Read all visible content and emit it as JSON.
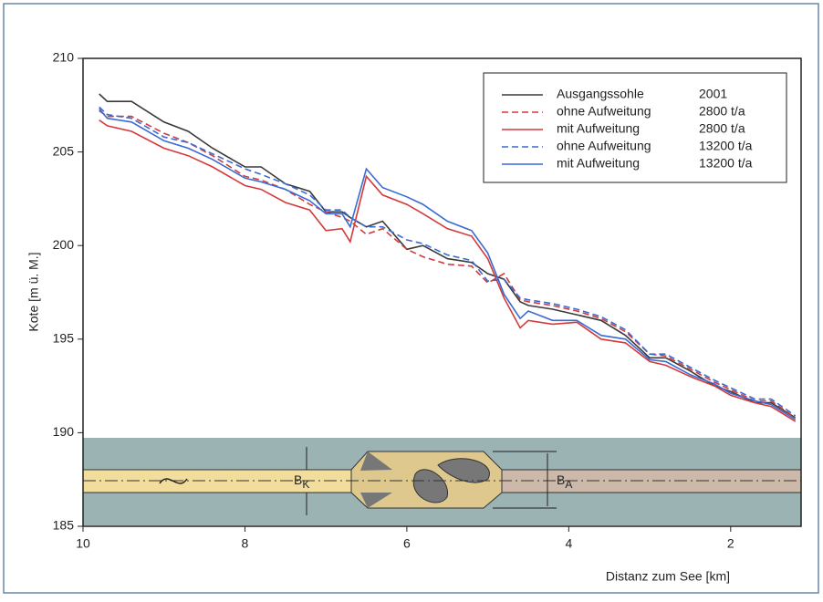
{
  "chart_data": {
    "type": "line",
    "x_label": "Distanz zum See [km]",
    "y_label": "Kote [m ü. M.]",
    "x": [
      9.8,
      9.7,
      9.4,
      9.0,
      8.7,
      8.4,
      8.0,
      7.8,
      7.5,
      7.2,
      7.0,
      6.8,
      6.7,
      6.5,
      6.3,
      6.0,
      5.8,
      5.5,
      5.2,
      5.0,
      4.8,
      4.6,
      4.5,
      4.2,
      3.9,
      3.6,
      3.3,
      3.0,
      2.8,
      2.5,
      2.2,
      2.0,
      1.7,
      1.5,
      1.2
    ],
    "series": [
      {
        "name": "Ausgangssohle",
        "load": "2001",
        "color": "#3a3a3a",
        "dash": false,
        "values": [
          208.1,
          207.7,
          207.7,
          206.6,
          206.1,
          205.2,
          204.2,
          204.2,
          203.3,
          202.9,
          201.8,
          201.8,
          201.5,
          201.0,
          201.3,
          199.8,
          200.0,
          199.3,
          199.1,
          198.5,
          198.2,
          197.0,
          196.8,
          196.6,
          196.3,
          196.0,
          195.2,
          194.0,
          194.0,
          193.3,
          192.5,
          192.2,
          191.6,
          191.6,
          190.8
        ]
      },
      {
        "name": "ohne Aufweitung",
        "load": "2800 t/a",
        "color": "#d43a3a",
        "dash": true,
        "values": [
          207.2,
          206.9,
          206.9,
          206.0,
          205.5,
          204.8,
          203.7,
          203.5,
          203.0,
          202.2,
          201.8,
          201.5,
          201.3,
          200.6,
          200.9,
          199.8,
          199.4,
          199.0,
          198.9,
          198.0,
          198.5,
          197.1,
          197.0,
          196.8,
          196.5,
          196.1,
          195.4,
          194.2,
          194.1,
          193.4,
          192.7,
          192.3,
          191.7,
          191.7,
          190.8
        ]
      },
      {
        "name": "mit Aufweitung",
        "load": "2800 t/a",
        "color": "#d43a3a",
        "dash": false,
        "values": [
          206.7,
          206.4,
          206.1,
          205.2,
          204.8,
          204.2,
          203.2,
          203.0,
          202.3,
          201.9,
          200.8,
          200.9,
          200.2,
          203.7,
          202.7,
          202.2,
          201.7,
          200.9,
          200.5,
          199.3,
          197.2,
          195.6,
          196.0,
          195.8,
          195.9,
          195.0,
          194.8,
          193.8,
          193.6,
          193.0,
          192.5,
          192.0,
          191.6,
          191.4,
          190.6
        ]
      },
      {
        "name": "ohne Aufweitung",
        "load": "13200 t/a",
        "color": "#3a6ad4",
        "dash": true,
        "values": [
          207.4,
          207.0,
          206.8,
          205.8,
          205.5,
          204.9,
          204.1,
          203.8,
          203.3,
          202.7,
          201.9,
          201.9,
          201.5,
          201.0,
          201.0,
          200.3,
          200.1,
          199.5,
          199.2,
          198.1,
          198.2,
          197.2,
          197.1,
          196.9,
          196.6,
          196.2,
          195.5,
          194.2,
          194.2,
          193.5,
          192.8,
          192.4,
          191.8,
          191.8,
          190.9
        ]
      },
      {
        "name": "mit Aufweitung",
        "load": "13200 t/a",
        "color": "#3a6ad4",
        "dash": false,
        "values": [
          207.3,
          206.8,
          206.6,
          205.6,
          205.2,
          204.6,
          203.6,
          203.4,
          203.0,
          202.4,
          201.7,
          201.7,
          201.0,
          204.1,
          203.1,
          202.6,
          202.2,
          201.3,
          200.8,
          199.6,
          197.4,
          196.1,
          196.5,
          196.0,
          196.0,
          195.2,
          195.0,
          193.9,
          193.8,
          193.1,
          192.6,
          192.1,
          191.7,
          191.5,
          190.7
        ]
      }
    ],
    "xlim": [
      10,
      1.13
    ],
    "xticks": [
      10,
      8,
      6,
      4,
      2
    ],
    "ylim": [
      185,
      210
    ],
    "yticks": [
      185,
      190,
      195,
      200,
      205,
      210
    ],
    "annotations": [
      {
        "text": "B",
        "sub": "K"
      },
      {
        "text": "B",
        "sub": "A"
      }
    ]
  }
}
